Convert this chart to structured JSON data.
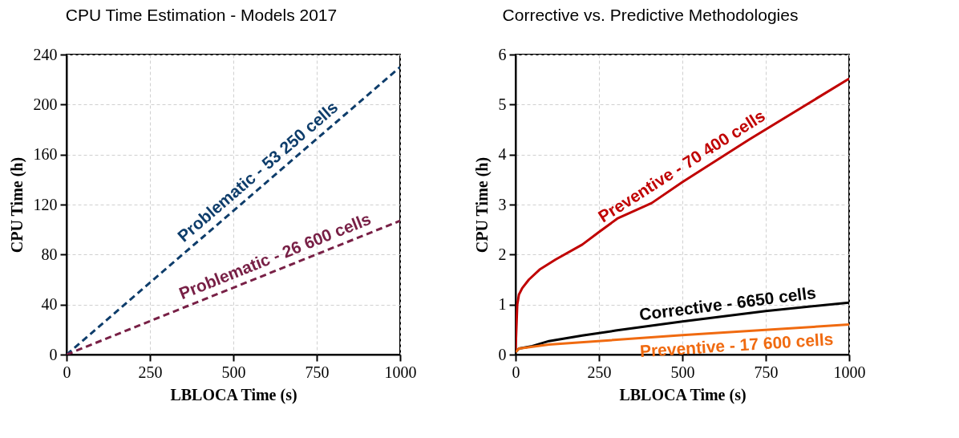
{
  "chart_data": [
    {
      "type": "line",
      "title": "CPU Time Estimation - Models 2017",
      "xlabel": "LBLOCA Time (s)",
      "ylabel": "CPU Time (h)",
      "xlim": [
        0,
        1000
      ],
      "ylim": [
        0,
        240
      ],
      "xticks": [
        0,
        250,
        500,
        750,
        1000
      ],
      "yticks": [
        0,
        40,
        80,
        120,
        160,
        200,
        240
      ],
      "grid": true,
      "line_style": "dashed",
      "legend": false,
      "series": [
        {
          "name": "Problematic - 53 250 cells",
          "color": "#0e3d6b",
          "x": [
            0,
            1000
          ],
          "values": [
            0,
            230
          ]
        },
        {
          "name": "Problematic - 26 600 cells",
          "color": "#782046",
          "x": [
            0,
            1000
          ],
          "values": [
            0,
            107
          ]
        }
      ]
    },
    {
      "type": "line",
      "title": "Corrective vs. Predictive Methodologies",
      "xlabel": "LBLOCA Time (s)",
      "ylabel": "CPU Time (h)",
      "xlim": [
        0,
        1000
      ],
      "ylim": [
        0,
        6
      ],
      "xticks": [
        0,
        250,
        500,
        750,
        1000
      ],
      "yticks": [
        0,
        1,
        2,
        3,
        4,
        5,
        6
      ],
      "grid": true,
      "line_style": "solid",
      "legend": false,
      "series": [
        {
          "name": "Preventive - 70 400 cells",
          "color": "#c00000",
          "x": [
            0,
            5,
            10,
            20,
            40,
            72,
            120,
            200,
            250,
            305,
            408,
            500,
            700,
            1000
          ],
          "values": [
            0.1,
            1.0,
            1.2,
            1.33,
            1.5,
            1.7,
            1.9,
            2.2,
            2.45,
            2.72,
            3.03,
            3.45,
            4.3,
            5.52
          ]
        },
        {
          "name": "Corrective - 6650 cells",
          "color": "#000000",
          "x": [
            0,
            10,
            50,
            100,
            200,
            300,
            500,
            750,
            1000
          ],
          "values": [
            0.05,
            0.12,
            0.17,
            0.27,
            0.38,
            0.48,
            0.66,
            0.87,
            1.04
          ]
        },
        {
          "name": "Preventive - 17 600 cells",
          "color": "#f06a10",
          "x": [
            0,
            10,
            100,
            500,
            1000
          ],
          "values": [
            0.05,
            0.12,
            0.2,
            0.39,
            0.6
          ]
        }
      ]
    }
  ]
}
